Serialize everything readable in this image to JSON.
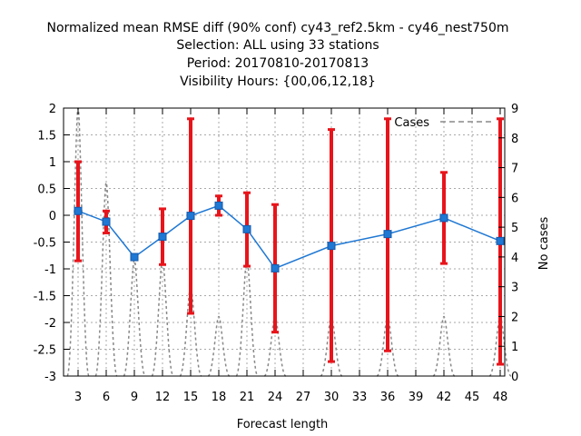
{
  "chart_data": {
    "type": "line",
    "title_lines": [
      "Normalized mean RMSE diff (90% conf) cy43_ref2.5km - cy46_nest750m",
      "Selection: ALL using    33 stations",
      "Period: 20170810-20170813",
      "Visibility   Hours: {00,06,12,18}"
    ],
    "xlabel": "Forecast length",
    "y2label": "No cases",
    "x_ticks": [
      "3",
      "6",
      "9",
      "12",
      "15",
      "18",
      "21",
      "24",
      "27",
      "30",
      "33",
      "36",
      "39",
      "42",
      "45",
      "48"
    ],
    "x_range": [
      0,
      48
    ],
    "y_ticks": [
      "2",
      "1.5",
      "1",
      "0.5",
      "0",
      "-0.5",
      "-1",
      "-1.5",
      "-2",
      "-2.5",
      "-3"
    ],
    "ylim": [
      -3,
      2
    ],
    "y2_ticks": [
      "9",
      "8",
      "7",
      "6",
      "5",
      "4",
      "3",
      "2",
      "1",
      "0"
    ],
    "y2lim": [
      0,
      9
    ],
    "grid": true,
    "legend": {
      "label": "Cases",
      "position": "top-right"
    },
    "series": [
      {
        "role": "mean_rmse_diff",
        "color": "#1f78d4",
        "points": [
          {
            "x": 3,
            "y": 0.08,
            "lo": -0.85,
            "hi": 1.0
          },
          {
            "x": 6,
            "y": -0.12,
            "lo": -0.33,
            "hi": 0.08
          },
          {
            "x": 9,
            "y": -0.78,
            "lo": -0.82,
            "hi": -0.74
          },
          {
            "x": 12,
            "y": -0.4,
            "lo": -0.92,
            "hi": 0.12
          },
          {
            "x": 15,
            "y": -0.01,
            "lo": -1.83,
            "hi": 1.8
          },
          {
            "x": 18,
            "y": 0.18,
            "lo": 0.0,
            "hi": 0.36
          },
          {
            "x": 21,
            "y": -0.26,
            "lo": -0.95,
            "hi": 0.42
          },
          {
            "x": 24,
            "y": -0.99,
            "lo": -2.18,
            "hi": 0.2
          },
          {
            "x": 30,
            "y": -0.57,
            "lo": -2.73,
            "hi": 1.6
          },
          {
            "x": 36,
            "y": -0.35,
            "lo": -2.53,
            "hi": 1.8
          },
          {
            "x": 42,
            "y": -0.05,
            "lo": -0.9,
            "hi": 0.8
          },
          {
            "x": 48,
            "y": -0.48,
            "lo": -2.78,
            "hi": 1.8
          }
        ]
      },
      {
        "role": "cases",
        "color": "#888888",
        "points": [
          {
            "x": 3,
            "y": 9
          },
          {
            "x": 6,
            "y": 6.5
          },
          {
            "x": 9,
            "y": 3.9
          },
          {
            "x": 12,
            "y": 3.9
          },
          {
            "x": 15,
            "y": 3
          },
          {
            "x": 18,
            "y": 2
          },
          {
            "x": 21,
            "y": 3.9
          },
          {
            "x": 24,
            "y": 2
          },
          {
            "x": 30,
            "y": 2
          },
          {
            "x": 36,
            "y": 2
          },
          {
            "x": 42,
            "y": 2
          },
          {
            "x": 48,
            "y": 2
          }
        ]
      }
    ]
  }
}
